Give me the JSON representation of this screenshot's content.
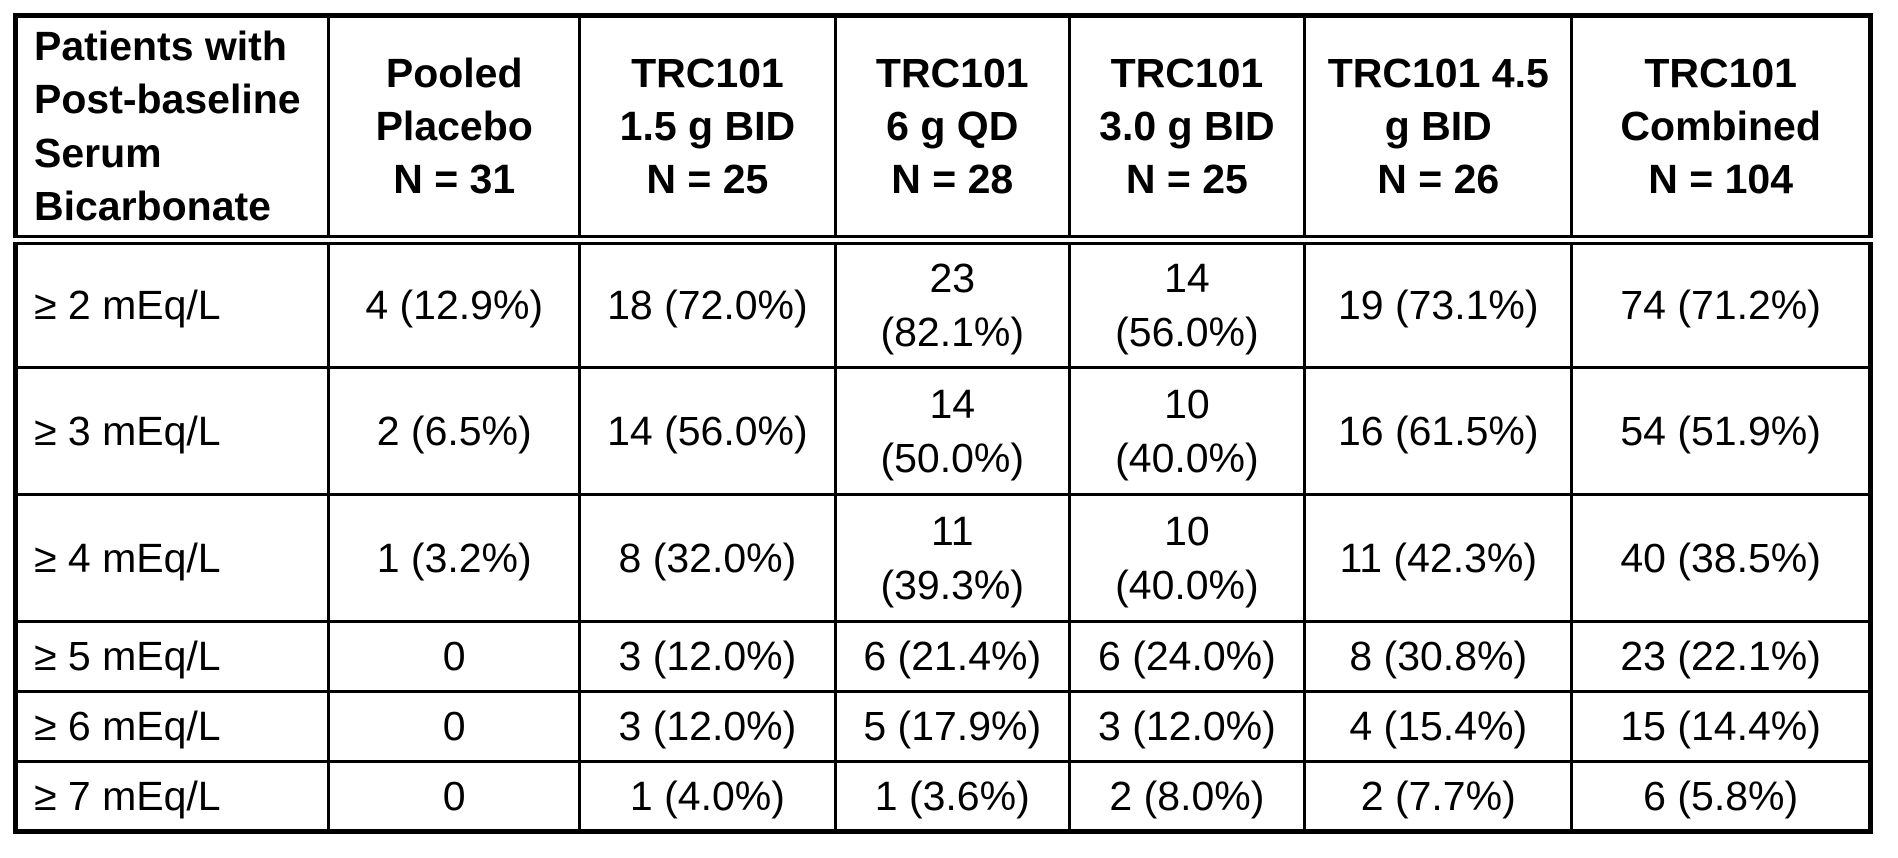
{
  "table": {
    "corner_header": "Patients with\nPost-baseline\nSerum\nBicarbonate",
    "columns": [
      "Pooled\nPlacebo\nN = 31",
      "TRC101\n1.5 g BID\nN = 25",
      "TRC101\n6 g QD\nN = 28",
      "TRC101\n3.0 g BID\nN = 25",
      "TRC101 4.5\ng BID\nN = 26",
      "TRC101\nCombined\nN = 104"
    ],
    "rows": [
      {
        "label": "≥ 2 mEq/L",
        "values": [
          "4 (12.9%)",
          "18 (72.0%)",
          "23\n(82.1%)",
          "14\n(56.0%)",
          "19 (73.1%)",
          "74 (71.2%)"
        ]
      },
      {
        "label": "≥ 3 mEq/L",
        "values": [
          "2 (6.5%)",
          "14 (56.0%)",
          "14\n(50.0%)",
          "10\n(40.0%)",
          "16 (61.5%)",
          "54 (51.9%)"
        ]
      },
      {
        "label": "≥ 4 mEq/L",
        "values": [
          "1 (3.2%)",
          "8 (32.0%)",
          "11\n(39.3%)",
          "10\n(40.0%)",
          "11 (42.3%)",
          "40 (38.5%)"
        ]
      },
      {
        "label": "≥ 5 mEq/L",
        "values": [
          "0",
          "3 (12.0%)",
          "6 (21.4%)",
          "6 (24.0%)",
          "8 (30.8%)",
          "23 (22.1%)"
        ]
      },
      {
        "label": "≥ 6 mEq/L",
        "values": [
          "0",
          "3 (12.0%)",
          "5 (17.9%)",
          "3 (12.0%)",
          "4 (15.4%)",
          "15 (14.4%)"
        ]
      },
      {
        "label": "≥ 7 mEq/L",
        "values": [
          "0",
          "1 (4.0%)",
          "1 (3.6%)",
          "2 (8.0%)",
          "2 (7.7%)",
          "6 (5.8%)"
        ]
      }
    ],
    "colors": {
      "border": "#000000",
      "text": "#000000",
      "background": "#ffffff"
    }
  }
}
